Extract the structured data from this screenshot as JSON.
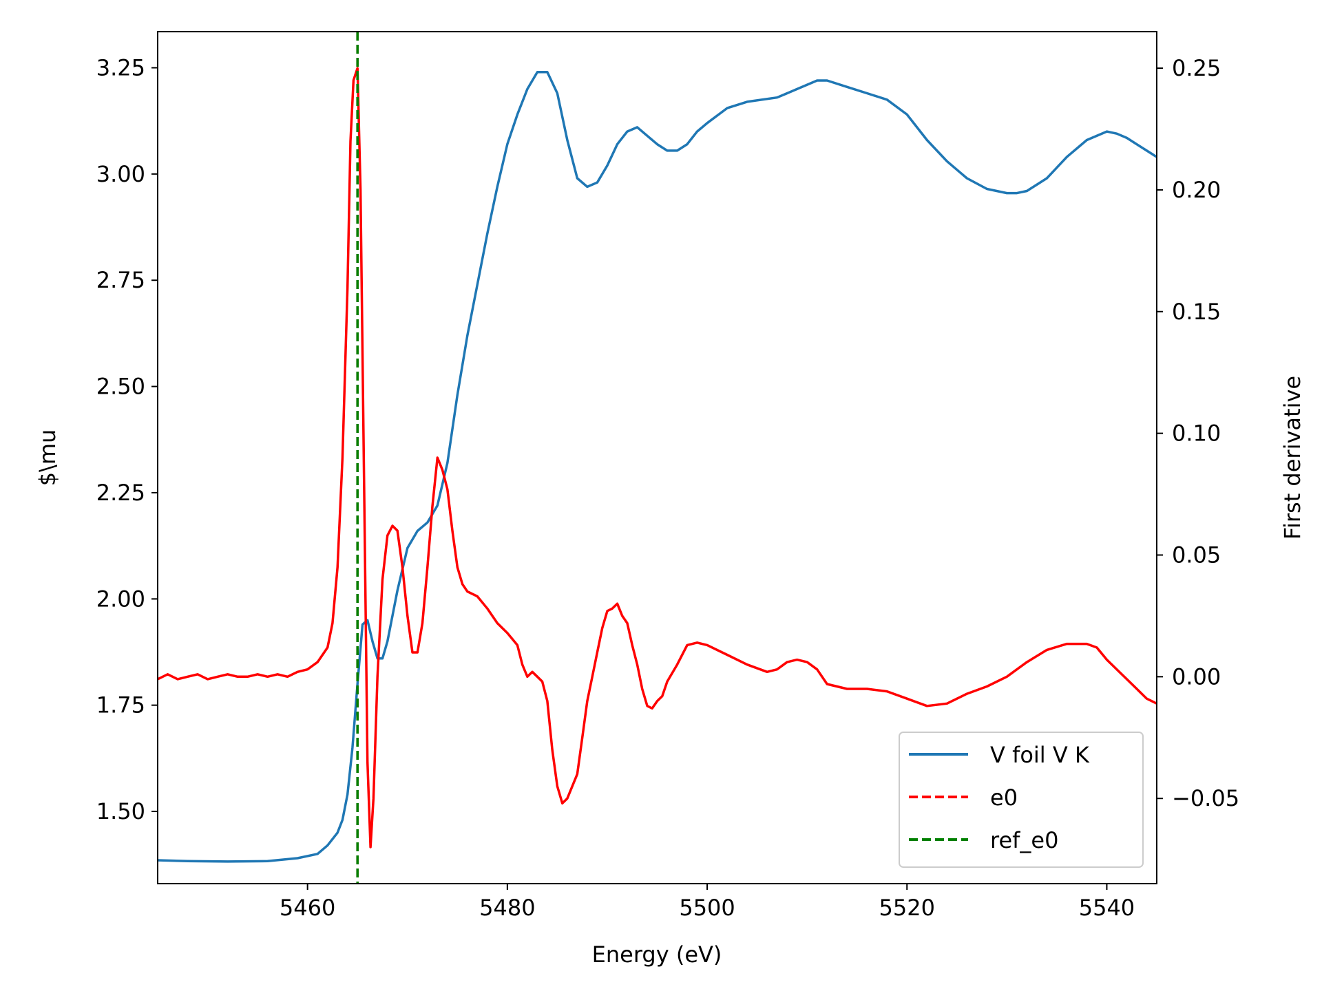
{
  "chart_data": {
    "type": "line",
    "xlabel": "Energy (eV)",
    "ylabel_left": "$\\mu",
    "ylabel_right": "First derivative",
    "xlim": [
      5445,
      5545
    ],
    "ylim_left": [
      1.33,
      3.335
    ],
    "ylim_right": [
      -0.085,
      0.265
    ],
    "xticks": [
      5460,
      5480,
      5500,
      5520,
      5540
    ],
    "yticks_left": [
      1.5,
      1.75,
      2.0,
      2.25,
      2.5,
      2.75,
      3.0,
      3.25
    ],
    "yticks_right": [
      -0.05,
      0.0,
      0.05,
      0.1,
      0.15,
      0.2,
      0.25
    ],
    "grid": false,
    "legend_position": "lower-right",
    "vlines": [
      {
        "name": "e0",
        "x": 5465,
        "color": "#ff0000",
        "style": "dashed"
      },
      {
        "name": "ref_e0",
        "x": 5465,
        "color": "#008000",
        "style": "dashed"
      }
    ],
    "series": [
      {
        "name": "V foil V  K",
        "axis": "left",
        "color": "#1f77b4",
        "style": "solid",
        "x": [
          5445,
          5448,
          5452,
          5456,
          5459,
          5461,
          5462,
          5463,
          5463.5,
          5464,
          5464.5,
          5465,
          5465.5,
          5466,
          5466.5,
          5467,
          5467.5,
          5468,
          5469,
          5470,
          5471,
          5472,
          5473,
          5474,
          5475,
          5476,
          5477,
          5478,
          5479,
          5480,
          5481,
          5482,
          5483,
          5484,
          5485,
          5486,
          5487,
          5488,
          5489,
          5490,
          5491,
          5492,
          5493,
          5494,
          5495,
          5496,
          5497,
          5498,
          5499,
          5500,
          5502,
          5504,
          5507,
          5509,
          5511,
          5512,
          5514,
          5516,
          5518,
          5520,
          5522,
          5524,
          5526,
          5528,
          5530,
          5531,
          5532,
          5534,
          5536,
          5538,
          5540,
          5541,
          5542,
          5544,
          5545
        ],
        "y": [
          1.385,
          1.383,
          1.382,
          1.383,
          1.39,
          1.4,
          1.42,
          1.45,
          1.48,
          1.54,
          1.65,
          1.8,
          1.94,
          1.95,
          1.9,
          1.86,
          1.86,
          1.9,
          2.02,
          2.12,
          2.16,
          2.18,
          2.22,
          2.32,
          2.48,
          2.62,
          2.74,
          2.86,
          2.97,
          3.07,
          3.14,
          3.2,
          3.24,
          3.24,
          3.19,
          3.08,
          2.99,
          2.97,
          2.98,
          3.02,
          3.07,
          3.1,
          3.11,
          3.09,
          3.07,
          3.055,
          3.055,
          3.07,
          3.1,
          3.12,
          3.155,
          3.17,
          3.18,
          3.2,
          3.22,
          3.22,
          3.205,
          3.19,
          3.175,
          3.14,
          3.08,
          3.03,
          2.99,
          2.965,
          2.955,
          2.955,
          2.96,
          2.99,
          3.04,
          3.08,
          3.1,
          3.095,
          3.085,
          3.055,
          3.04
        ]
      },
      {
        "name": "derivative",
        "axis": "right",
        "color": "#ff0000",
        "style": "solid",
        "x": [
          5445,
          5446,
          5447,
          5448,
          5449,
          5450,
          5451,
          5452,
          5453,
          5454,
          5455,
          5456,
          5457,
          5458,
          5459,
          5460,
          5461,
          5462,
          5462.5,
          5463,
          5463.5,
          5464,
          5464.3,
          5464.6,
          5465,
          5465.3,
          5465.6,
          5466,
          5466.3,
          5466.6,
          5467,
          5467.5,
          5468,
          5468.5,
          5469,
          5469.5,
          5470,
          5470.5,
          5471,
          5471.5,
          5472,
          5472.5,
          5473,
          5473.5,
          5474,
          5474.5,
          5475,
          5475.5,
          5476,
          5477,
          5478,
          5479,
          5480,
          5481,
          5481.5,
          5482,
          5482.5,
          5483,
          5483.5,
          5484,
          5484.5,
          5485,
          5485.5,
          5486,
          5487,
          5487.5,
          5488,
          5488.5,
          5489,
          5489.5,
          5490,
          5490.5,
          5491,
          5491.5,
          5492,
          5492.5,
          5493,
          5493.5,
          5494,
          5494.5,
          5495,
          5495.5,
          5496,
          5497,
          5498,
          5499,
          5500,
          5502,
          5504,
          5506,
          5507,
          5508,
          5509,
          5510,
          5511,
          5512,
          5514,
          5516,
          5518,
          5520,
          5522,
          5524,
          5526,
          5528,
          5530,
          5532,
          5534,
          5536,
          5538,
          5539,
          5540,
          5542,
          5543,
          5544,
          5545
        ],
        "y": [
          -0.001,
          0.001,
          -0.001,
          0.0,
          0.001,
          -0.001,
          0.0,
          0.001,
          0.0,
          0.0,
          0.001,
          0.0,
          0.001,
          0.0,
          0.002,
          0.003,
          0.006,
          0.012,
          0.022,
          0.045,
          0.09,
          0.16,
          0.22,
          0.245,
          0.25,
          0.2,
          0.1,
          -0.035,
          -0.07,
          -0.05,
          0.0,
          0.04,
          0.058,
          0.062,
          0.06,
          0.045,
          0.025,
          0.01,
          0.01,
          0.022,
          0.045,
          0.07,
          0.09,
          0.085,
          0.077,
          0.06,
          0.045,
          0.038,
          0.035,
          0.033,
          0.028,
          0.022,
          0.018,
          0.013,
          0.005,
          0.0,
          0.002,
          0.0,
          -0.002,
          -0.01,
          -0.03,
          -0.045,
          -0.052,
          -0.05,
          -0.04,
          -0.025,
          -0.01,
          0.0,
          0.01,
          0.02,
          0.027,
          0.028,
          0.03,
          0.025,
          0.022,
          0.013,
          0.005,
          -0.005,
          -0.012,
          -0.013,
          -0.01,
          -0.008,
          -0.002,
          0.005,
          0.013,
          0.014,
          0.013,
          0.009,
          0.005,
          0.002,
          0.003,
          0.006,
          0.007,
          0.006,
          0.003,
          -0.003,
          -0.005,
          -0.005,
          -0.006,
          -0.009,
          -0.012,
          -0.011,
          -0.007,
          -0.004,
          0.0,
          0.006,
          0.011,
          0.0135,
          0.0135,
          0.012,
          0.007,
          -0.001,
          -0.005,
          -0.009,
          -0.011
        ]
      }
    ],
    "legend": [
      {
        "label": "V foil V  K",
        "color": "#1f77b4",
        "style": "solid"
      },
      {
        "label": "e0",
        "color": "#ff0000",
        "style": "dashed"
      },
      {
        "label": "ref_e0",
        "color": "#008000",
        "style": "dashed"
      }
    ]
  }
}
